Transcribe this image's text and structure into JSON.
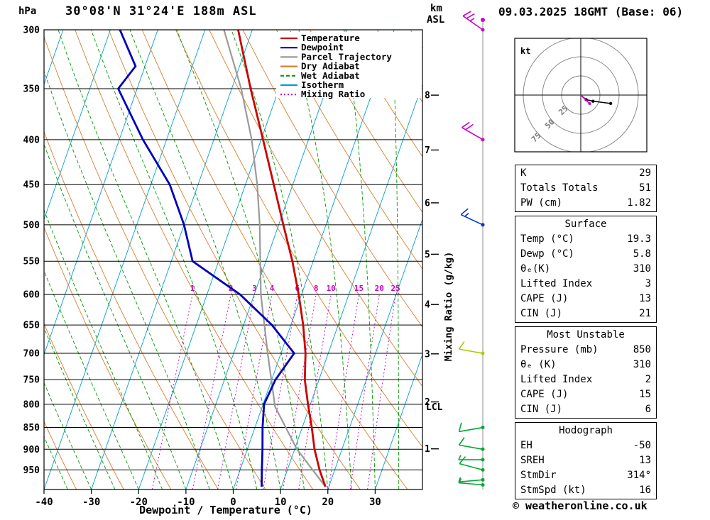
{
  "header": {
    "pressure_unit_label": "hPa",
    "station_title": "30°08'N 31°24'E 188m ASL",
    "datetime_title": "09.03.2025 18GMT (Base: 06)",
    "km_label": "km",
    "asl_label": "ASL"
  },
  "legend": {
    "items": [
      {
        "label": "Temperature",
        "color": "#cc0000",
        "dash": ""
      },
      {
        "label": "Dewpoint",
        "color": "#0000bb",
        "dash": ""
      },
      {
        "label": "Parcel Trajectory",
        "color": "#9a9a9a",
        "dash": ""
      },
      {
        "label": "Dry Adiabat",
        "color": "#d77f2e",
        "dash": ""
      },
      {
        "label": "Wet Adiabat",
        "color": "#009900",
        "dash": "5 3"
      },
      {
        "label": "Isotherm",
        "color": "#00a0c8",
        "dash": ""
      },
      {
        "label": "Mixing Ratio",
        "color": "#c800c8",
        "dash": "2 3"
      }
    ]
  },
  "chart_data": {
    "type": "line",
    "subtype": "skew-t log-p sounding",
    "xlabel": "Dewpoint / Temperature (°C)",
    "right_axis_label": "Mixing Ratio (g/kg)",
    "pressure_axis_ticks_hPa": [
      300,
      350,
      400,
      450,
      500,
      550,
      600,
      650,
      700,
      750,
      800,
      850,
      900,
      950
    ],
    "pressure_range_hPa": [
      300,
      1000
    ],
    "temp_axis_ticks_C": [
      -40,
      -30,
      -20,
      -10,
      0,
      10,
      20,
      30
    ],
    "temp_range_C": [
      -40,
      40
    ],
    "km_asl_ticks": [
      8,
      7,
      6,
      5,
      4,
      3,
      2,
      1
    ],
    "km_tick_pressures_hPa": [
      356,
      411,
      472,
      540,
      616,
      701,
      795,
      899
    ],
    "lcl": {
      "label": "LCL",
      "pressure_hPa": 805
    },
    "mixing_ratio_values_gkg": [
      1,
      2,
      3,
      4,
      6,
      8,
      10,
      15,
      20,
      25
    ],
    "colors": {
      "temperature": "#cc0000",
      "dewpoint": "#0000bb",
      "parcel": "#9a9a9a",
      "dry_adiabat": "#d77f2e",
      "wet_adiabat": "#009900",
      "isotherm": "#00a0c8",
      "mixing_ratio": "#c800c8",
      "grid": "#000000"
    },
    "temperature_profile_p_T": [
      [
        993,
        19.3
      ],
      [
        950,
        16.8
      ],
      [
        900,
        14.2
      ],
      [
        850,
        12.0
      ],
      [
        800,
        9.5
      ],
      [
        750,
        7.0
      ],
      [
        700,
        5.2
      ],
      [
        650,
        2.6
      ],
      [
        600,
        -0.6
      ],
      [
        550,
        -4.4
      ],
      [
        500,
        -9.0
      ],
      [
        450,
        -14.0
      ],
      [
        400,
        -19.6
      ],
      [
        350,
        -26.0
      ],
      [
        300,
        -33.0
      ]
    ],
    "dewpoint_profile_p_Td": [
      [
        993,
        5.8
      ],
      [
        950,
        4.6
      ],
      [
        900,
        3.2
      ],
      [
        850,
        1.6
      ],
      [
        800,
        0.2
      ],
      [
        750,
        0.8
      ],
      [
        700,
        2.8
      ],
      [
        650,
        -4.0
      ],
      [
        600,
        -13.0
      ],
      [
        550,
        -25.5
      ],
      [
        500,
        -30.0
      ],
      [
        450,
        -36.0
      ],
      [
        400,
        -45.0
      ],
      [
        350,
        -54.0
      ],
      [
        330,
        -52.0
      ],
      [
        300,
        -58.0
      ]
    ],
    "parcel_profile_p_T": [
      [
        993,
        19.3
      ],
      [
        900,
        10.5
      ],
      [
        805,
        2.7
      ],
      [
        700,
        -2.8
      ],
      [
        600,
        -8.6
      ],
      [
        500,
        -14.0
      ],
      [
        450,
        -17.5
      ],
      [
        400,
        -22.0
      ],
      [
        350,
        -28.0
      ],
      [
        300,
        -36.0
      ]
    ],
    "wind_barbs": [
      {
        "pressure_hPa": 300,
        "speed_kt": 25,
        "dir_deg": 305,
        "color": "#cc00cc"
      },
      {
        "pressure_hPa": 400,
        "speed_kt": 20,
        "dir_deg": 300,
        "color": "#cc00cc"
      },
      {
        "pressure_hPa": 500,
        "speed_kt": 15,
        "dir_deg": 295,
        "color": "#0033cc"
      },
      {
        "pressure_hPa": 700,
        "speed_kt": 10,
        "dir_deg": 280,
        "color": "#b0c800"
      },
      {
        "pressure_hPa": 850,
        "speed_kt": 10,
        "dir_deg": 260,
        "color": "#00a833"
      },
      {
        "pressure_hPa": 900,
        "speed_kt": 10,
        "dir_deg": 280,
        "color": "#00a833"
      },
      {
        "pressure_hPa": 925,
        "speed_kt": 5,
        "dir_deg": 270,
        "color": "#00a833"
      },
      {
        "pressure_hPa": 950,
        "speed_kt": 10,
        "dir_deg": 285,
        "color": "#00a833"
      },
      {
        "pressure_hPa": 975,
        "speed_kt": 5,
        "dir_deg": 265,
        "color": "#00a833"
      },
      {
        "pressure_hPa": 988,
        "speed_kt": 5,
        "dir_deg": 275,
        "color": "#00a833"
      }
    ]
  },
  "hodograph": {
    "unit_label": "kt",
    "ring_step_kt": 25,
    "ring_labels": [
      "25",
      "50",
      "75"
    ],
    "trace_kt": [
      [
        0,
        0
      ],
      [
        7,
        6
      ],
      [
        16,
        8
      ],
      [
        39,
        11
      ]
    ],
    "storm_motion": {
      "dir_deg": 314,
      "speed_kt": 16
    }
  },
  "tables": [
    {
      "name": "indices-table",
      "rows": [
        {
          "label": "K",
          "value": "29"
        },
        {
          "label": "Totals Totals",
          "value": "51"
        },
        {
          "label": "PW (cm)",
          "value": "1.82"
        }
      ]
    },
    {
      "name": "surface-table",
      "title": "Surface",
      "rows": [
        {
          "label": "Temp (°C)",
          "value": "19.3"
        },
        {
          "label": "Dewp (°C)",
          "value": "5.8"
        },
        {
          "label": "θₑ(K)",
          "value": "310"
        },
        {
          "label": "Lifted Index",
          "value": "3"
        },
        {
          "label": "CAPE (J)",
          "value": "13"
        },
        {
          "label": "CIN (J)",
          "value": "21"
        }
      ]
    },
    {
      "name": "most-unstable-table",
      "title": "Most Unstable",
      "rows": [
        {
          "label": "Pressure (mb)",
          "value": "850"
        },
        {
          "label": "θₑ (K)",
          "value": "310"
        },
        {
          "label": "Lifted Index",
          "value": "2"
        },
        {
          "label": "CAPE (J)",
          "value": "15"
        },
        {
          "label": "CIN (J)",
          "value": "6"
        }
      ]
    },
    {
      "name": "hodograph-table",
      "title": "Hodograph",
      "rows": [
        {
          "label": "EH",
          "value": "-50"
        },
        {
          "label": "SREH",
          "value": "13"
        },
        {
          "label": "StmDir",
          "value": "314°"
        },
        {
          "label": "StmSpd (kt)",
          "value": "16"
        }
      ]
    }
  ],
  "footer": {
    "copyright": "© weatheronline.co.uk"
  }
}
